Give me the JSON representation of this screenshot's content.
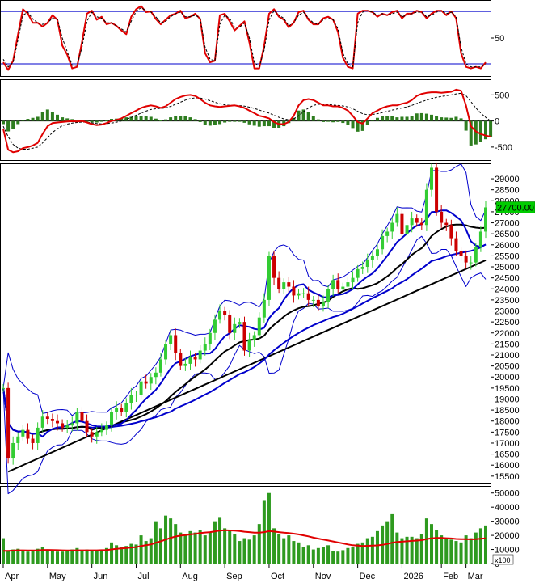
{
  "chart_data": [
    {
      "type": "line",
      "panel": "stochastic",
      "yticks": [
        {
          "label": "50",
          "value": 50
        }
      ],
      "ylim": [
        0,
        100
      ],
      "reference_lines": [
        85,
        16
      ],
      "series": [
        {
          "color": "#e00000",
          "values": [
            18,
            8,
            20,
            55,
            88,
            82,
            70,
            70,
            65,
            70,
            80,
            74,
            40,
            28,
            10,
            12,
            45,
            82,
            86,
            74,
            78,
            68,
            70,
            66,
            60,
            55,
            78,
            88,
            92,
            84,
            85,
            75,
            68,
            74,
            80,
            82,
            86,
            76,
            78,
            82,
            75,
            30,
            18,
            20,
            80,
            82,
            72,
            60,
            66,
            72,
            44,
            10,
            10,
            40,
            82,
            88,
            78,
            74,
            64,
            70,
            84,
            86,
            74,
            68,
            68,
            76,
            78,
            74,
            58,
            24,
            12,
            10,
            82,
            86,
            86,
            84,
            78,
            82,
            80,
            84,
            86,
            76,
            82,
            82,
            86,
            84,
            76,
            82,
            86,
            86,
            80,
            85,
            76,
            30,
            12,
            10,
            12,
            10,
            18
          ]
        },
        {
          "color": "#000000",
          "values": [
            22,
            12,
            18,
            48,
            80,
            84,
            75,
            70,
            68,
            70,
            76,
            75,
            50,
            32,
            14,
            14,
            38,
            72,
            84,
            78,
            76,
            70,
            70,
            66,
            62,
            58,
            72,
            85,
            90,
            86,
            84,
            78,
            70,
            72,
            78,
            82,
            84,
            78,
            78,
            80,
            76,
            38,
            22,
            20,
            68,
            80,
            76,
            64,
            64,
            70,
            50,
            18,
            12,
            34,
            74,
            86,
            80,
            76,
            66,
            70,
            80,
            84,
            76,
            70,
            68,
            74,
            76,
            74,
            62,
            30,
            16,
            12,
            70,
            84,
            86,
            84,
            80,
            82,
            80,
            82,
            84,
            78,
            80,
            82,
            84,
            84,
            78,
            80,
            84,
            86,
            82,
            84,
            78,
            38,
            16,
            12,
            12,
            12,
            16
          ],
          "dashed": true
        }
      ]
    },
    {
      "type": "bar",
      "panel": "macd",
      "yticks": [
        {
          "label": "500",
          "value": 500
        },
        {
          "label": "0",
          "value": 0
        },
        {
          "label": "-500",
          "value": -500
        }
      ],
      "ylim": [
        -750,
        800
      ],
      "series": [
        {
          "color": "#e00000",
          "values": [
            -150,
            -550,
            -600,
            -580,
            -520,
            -500,
            -470,
            -420,
            -250,
            -100,
            -40,
            -30,
            -20,
            -10,
            -5,
            -10,
            0,
            -30,
            -60,
            -80,
            -70,
            -40,
            0,
            20,
            50,
            100,
            150,
            200,
            250,
            280,
            300,
            280,
            250,
            280,
            350,
            420,
            460,
            490,
            500,
            480,
            420,
            350,
            300,
            280,
            270,
            280,
            290,
            300,
            280,
            250,
            200,
            150,
            100,
            80,
            50,
            -20,
            -60,
            -60,
            -20,
            100,
            300,
            400,
            420,
            400,
            350,
            300,
            300,
            280,
            280,
            250,
            200,
            100,
            -20,
            -50,
            50,
            150,
            200,
            250,
            280,
            300,
            300,
            330,
            350,
            400,
            480,
            520,
            540,
            550,
            550,
            540,
            550,
            560,
            600,
            580,
            300,
            -100,
            -200,
            -250,
            -280,
            -300
          ]
        },
        {
          "color": "#000000",
          "dashed": true,
          "values": [
            -100,
            -300,
            -450,
            -520,
            -540,
            -540,
            -520,
            -500,
            -420,
            -320,
            -220,
            -150,
            -90,
            -60,
            -40,
            -30,
            -20,
            -25,
            -35,
            -50,
            -55,
            -50,
            -40,
            -25,
            0,
            30,
            70,
            110,
            150,
            190,
            220,
            235,
            240,
            250,
            280,
            320,
            360,
            400,
            430,
            445,
            440,
            420,
            390,
            360,
            330,
            310,
            300,
            300,
            295,
            285,
            265,
            240,
            210,
            180,
            150,
            110,
            70,
            40,
            20,
            40,
            100,
            180,
            250,
            300,
            320,
            320,
            315,
            305,
            298,
            288,
            270,
            236,
            185,
            140,
            120,
            125,
            140,
            160,
            185,
            210,
            230,
            250,
            270,
            300,
            335,
            370,
            400,
            430,
            455,
            470,
            485,
            500,
            520,
            530,
            485,
            370,
            250,
            150,
            70,
            0
          ]
        },
        {
          "color": "#2e7d1f",
          "values": [
            -60,
            -200,
            -150,
            -60,
            20,
            40,
            60,
            80,
            170,
            220,
            180,
            120,
            70,
            50,
            35,
            20,
            20,
            -5,
            -25,
            -30,
            -15,
            10,
            40,
            45,
            50,
            70,
            80,
            90,
            100,
            90,
            80,
            45,
            10,
            30,
            70,
            100,
            100,
            90,
            70,
            35,
            -20,
            -70,
            -90,
            -80,
            -60,
            -30,
            -10,
            0,
            -15,
            -35,
            -65,
            -90,
            -110,
            -100,
            -100,
            -130,
            -130,
            -100,
            -40,
            60,
            200,
            220,
            170,
            100,
            30,
            -20,
            -15,
            -25,
            -18,
            -38,
            -70,
            -136,
            -205,
            -190,
            -70,
            25,
            60,
            90,
            95,
            90,
            70,
            80,
            80,
            100,
            145,
            150,
            140,
            120,
            95,
            70,
            65,
            60,
            80,
            50,
            -185,
            -470,
            -450,
            -400,
            -350,
            -300
          ]
        }
      ]
    },
    {
      "type": "candlestick",
      "panel": "price",
      "yticks": [
        {
          "label": "29000",
          "value": 29000
        },
        {
          "label": "28500",
          "value": 28500
        },
        {
          "label": "28000",
          "value": 28000
        },
        {
          "label": "27500",
          "value": 27500
        },
        {
          "label": "27000",
          "value": 27000
        },
        {
          "label": "26500",
          "value": 26500
        },
        {
          "label": "26000",
          "value": 26000
        },
        {
          "label": "25500",
          "value": 25500
        },
        {
          "label": "25000",
          "value": 25000
        },
        {
          "label": "24500",
          "value": 24500
        },
        {
          "label": "24000",
          "value": 24000
        },
        {
          "label": "23500",
          "value": 23500
        },
        {
          "label": "23000",
          "value": 23000
        },
        {
          "label": "22500",
          "value": 22500
        },
        {
          "label": "22000",
          "value": 22000
        },
        {
          "label": "21500",
          "value": 21500
        },
        {
          "label": "21000",
          "value": 21000
        },
        {
          "label": "20500",
          "value": 20500
        },
        {
          "label": "20000",
          "value": 20000
        },
        {
          "label": "19500",
          "value": 19500
        },
        {
          "label": "19000",
          "value": 19000
        },
        {
          "label": "18500",
          "value": 18500
        },
        {
          "label": "18000",
          "value": 18000
        },
        {
          "label": "17500",
          "value": 17500
        },
        {
          "label": "17000",
          "value": 17000
        },
        {
          "label": "16500",
          "value": 16500
        },
        {
          "label": "16000",
          "value": 16000
        },
        {
          "label": "15500",
          "value": 15500
        }
      ],
      "ylim": [
        15200,
        29700
      ],
      "last_price_label": "27700.00",
      "last_price_value": 27700,
      "close": [
        19500,
        16300,
        17000,
        17300,
        17600,
        17200,
        17000,
        17700,
        18200,
        18100,
        18000,
        17900,
        17700,
        17800,
        17900,
        18400,
        18000,
        17500,
        17300,
        17500,
        17600,
        17800,
        18400,
        18600,
        18400,
        18800,
        19200,
        19200,
        19800,
        19700,
        20000,
        20200,
        20800,
        21500,
        21900,
        21100,
        20500,
        20600,
        20900,
        20800,
        21200,
        21500,
        22000,
        22600,
        23000,
        22800,
        22000,
        22400,
        22500,
        21200,
        21700,
        21900,
        22700,
        23500,
        25500,
        24500,
        24000,
        24300,
        24100,
        23700,
        23800,
        23800,
        23500,
        23500,
        23200,
        23400,
        24000,
        24400,
        24000,
        24100,
        24300,
        24500,
        24900,
        25000,
        25300,
        25500,
        25800,
        26400,
        26600,
        27000,
        27400,
        26500,
        26900,
        27200,
        27000,
        26900,
        28500,
        29500,
        27500,
        27000,
        26900,
        26300,
        25700,
        25500,
        25200,
        25200,
        25900,
        26600,
        27700
      ],
      "volume": [
        18000,
        9000,
        10000,
        10500,
        9000,
        8500,
        9500,
        10500,
        11500,
        9500,
        9000,
        8500,
        8500,
        9000,
        10000,
        11000,
        9000,
        10000,
        9500,
        9000,
        9500,
        11000,
        15000,
        13000,
        12000,
        12500,
        14000,
        13500,
        20000,
        16000,
        18000,
        30000,
        25000,
        34000,
        32000,
        28000,
        22000,
        21000,
        23000,
        22000,
        24000,
        20000,
        22000,
        30000,
        33000,
        25000,
        24000,
        21000,
        16000,
        18000,
        17000,
        20000,
        28000,
        45000,
        50000,
        25000,
        21000,
        18000,
        20000,
        16000,
        15000,
        12000,
        13000,
        10000,
        11000,
        12000,
        13000,
        9000,
        8500,
        9500,
        11000,
        12000,
        14000,
        15000,
        18000,
        19000,
        23000,
        27000,
        30000,
        35000,
        22000,
        18000,
        19000,
        19000,
        18000,
        21000,
        32000,
        28000,
        24000,
        20000,
        18000,
        17000,
        16000,
        15000,
        20000,
        18000,
        22000,
        25000,
        27000
      ],
      "volume_ma": [
        9000,
        9000,
        9200,
        9400,
        9400,
        9300,
        9300,
        9400,
        9600,
        9700,
        9600,
        9500,
        9400,
        9300,
        9300,
        9400,
        9400,
        9400,
        9400,
        9400,
        9500,
        9600,
        10000,
        10400,
        10700,
        11000,
        11400,
        11700,
        12500,
        13000,
        13600,
        14800,
        15800,
        17000,
        18200,
        19200,
        19800,
        20200,
        20700,
        21100,
        21600,
        22000,
        22300,
        22800,
        23400,
        23600,
        23500,
        23400,
        23100,
        22600,
        22300,
        21900,
        21900,
        22300,
        23000,
        22700,
        22300,
        21900,
        21600,
        21200,
        20700,
        20000,
        19300,
        18400,
        17700,
        17000,
        16400,
        15700,
        15000,
        14300,
        13600,
        13000,
        12700,
        12500,
        12600,
        12700,
        12900,
        13300,
        13900,
        14800,
        15300,
        15500,
        15800,
        16100,
        16300,
        16600,
        17400,
        17900,
        18200,
        18200,
        18000,
        17800,
        17500,
        17300,
        17300,
        17200,
        17300,
        17600,
        17900
      ]
    },
    {
      "type": "bar",
      "panel": "volume",
      "yticks": [
        {
          "label": "50000",
          "value": 50000
        },
        {
          "label": "40000",
          "value": 40000
        },
        {
          "label": "30000",
          "value": 30000
        },
        {
          "label": "20000",
          "value": 20000
        },
        {
          "label": "10000",
          "value": 10000
        },
        {
          "label": "0",
          "value": 0
        }
      ],
      "ylim": [
        0,
        55000
      ],
      "unit_label": "x100"
    }
  ],
  "x_axis": {
    "months": [
      {
        "label": "Apr",
        "index": 0
      },
      {
        "label": "May",
        "index": 9
      },
      {
        "label": "Jun",
        "index": 18
      },
      {
        "label": "Jul",
        "index": 27
      },
      {
        "label": "Aug",
        "index": 36
      },
      {
        "label": "Sep",
        "index": 45
      },
      {
        "label": "Oct",
        "index": 54
      },
      {
        "label": "Nov",
        "index": 63
      },
      {
        "label": "Dec",
        "index": 72
      },
      {
        "label": "2026",
        "index": 81
      },
      {
        "label": "Feb",
        "index": 89
      },
      {
        "label": "Mar",
        "index": 94
      }
    ]
  },
  "colors": {
    "up": "#33cc33",
    "down": "#cc0000",
    "ma_long": "#0000cc",
    "ma_mid": "#000000",
    "bollinger": "#0000cc",
    "trendline": "#000000",
    "volume_bar": "#2e9a1f",
    "volume_ma": "#e00000",
    "last_price_bg": "#00cc00"
  }
}
